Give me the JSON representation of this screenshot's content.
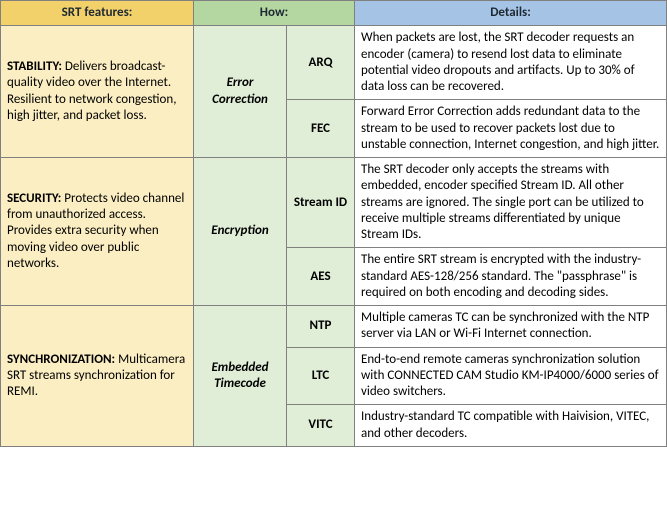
{
  "headers": {
    "features": "SRT features:",
    "how": "How:",
    "details": "Details:"
  },
  "rows": [
    {
      "feature_title": "STABILITY:",
      "feature_text": " Delivers broadcast-quality video over the Internet. Resilient to network congestion, high jitter, and packet loss.",
      "how1": "Error Correction",
      "items": [
        {
          "how2": "ARQ",
          "details": "When packets are lost, the SRT decoder requests an encoder (camera) to resend lost data to eliminate potential video dropouts and artifacts. Up to 30% of data loss can be recovered."
        },
        {
          "how2": "FEC",
          "details": "Forward Error Correction adds redundant data to the stream to be used to recover packets lost due to unstable connection, Internet congestion, and high jitter."
        }
      ]
    },
    {
      "feature_title": "SECURITY:",
      "feature_text": " Protects video channel from unauthorized access. Provides extra security when moving video over public networks.",
      "how1": "Encryption",
      "items": [
        {
          "how2": "Stream ID",
          "details": "The SRT decoder only accepts the streams with embedded, encoder specified Stream ID. All other streams are ignored. The single port can be utilized to receive multiple streams differentiated by unique Stream IDs."
        },
        {
          "how2": "AES",
          "details": "The entire SRT stream is encrypted with the industry-standard AES-128/256 standard. The \"passphrase\" is required on both encoding and decoding sides."
        }
      ]
    },
    {
      "feature_title": "SYNCHRONIZATION:",
      "feature_text": " Multicamera SRT streams synchronization for REMI.",
      "how1": "Embedded Timecode",
      "items": [
        {
          "how2": "NTP",
          "details": "Multiple cameras TC can be synchronized with the NTP server via LAN or Wi-Fi Internet connection."
        },
        {
          "how2": "LTC",
          "details": "End-to-end remote cameras synchronization solution with CONNECTED CAM Studio KM-IP4000/6000 series of video switchers."
        },
        {
          "how2": "VITC",
          "details": "Industry-standard TC compatible with Haivision, VITEC, and other decoders."
        }
      ]
    }
  ]
}
